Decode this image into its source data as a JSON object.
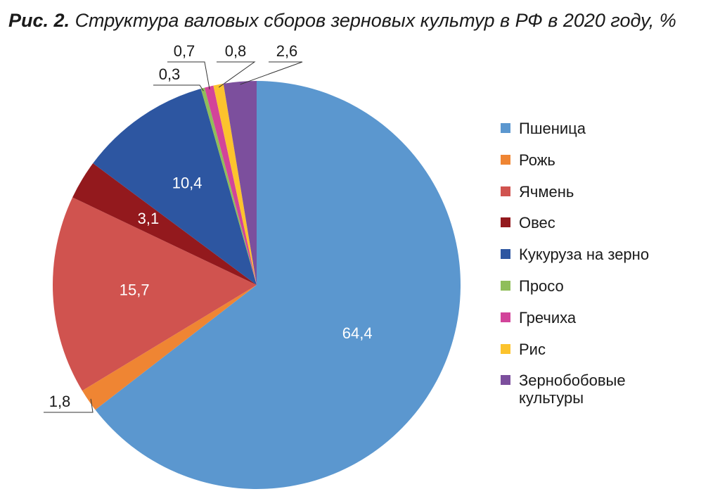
{
  "chart_data": {
    "type": "pie",
    "figure_label": "Рис. 2.",
    "title": "Структура валовых сборов зерновых культур в РФ в 2020 году, %",
    "categories": [
      "Пшеница",
      "Рожь",
      "Ячмень",
      "Овес",
      "Кукуруза на зерно",
      "Просо",
      "Гречиха",
      "Рис",
      "Зернобобовые культуры"
    ],
    "values": [
      64.4,
      1.8,
      15.7,
      3.1,
      10.4,
      0.3,
      0.7,
      0.8,
      2.6
    ],
    "value_labels": [
      "64,4",
      "1,8",
      "15,7",
      "3,1",
      "10,4",
      "0,3",
      "0,7",
      "0,8",
      "2,6"
    ],
    "colors": [
      "#5b97cf",
      "#ef8533",
      "#d0534f",
      "#93191d",
      "#2d56a1",
      "#8fbe5a",
      "#d2449a",
      "#fcc32d",
      "#7c4f9d"
    ]
  }
}
